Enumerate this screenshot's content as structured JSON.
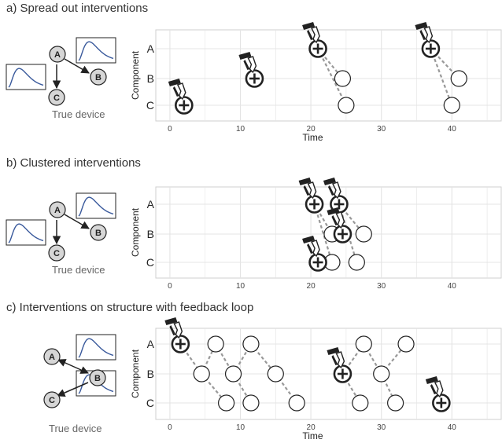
{
  "panels": [
    {
      "title": "a)  Spread out interventions",
      "device_label": "True device",
      "nodes": [
        "A",
        "B",
        "C"
      ],
      "yaxis_label": "Component",
      "xaxis_label": "Time",
      "rows": [
        "A",
        "B",
        "C"
      ],
      "xticks": [
        "0",
        "10",
        "20",
        "30",
        "40"
      ],
      "interventions": [
        {
          "t": 2,
          "row": "C"
        },
        {
          "t": 12,
          "row": "B"
        },
        {
          "t": 21,
          "row": "A"
        },
        {
          "t": 37,
          "row": "A"
        }
      ],
      "responses": [
        {
          "t": 24.5,
          "row": "B",
          "from": 2
        },
        {
          "t": 25,
          "row": "C",
          "from": 2
        },
        {
          "t": 41,
          "row": "B",
          "from": 3
        },
        {
          "t": 40,
          "row": "C",
          "from": 3
        }
      ]
    },
    {
      "title": "b) Clustered interventions",
      "device_label": "True device",
      "nodes": [
        "A",
        "B",
        "C"
      ],
      "yaxis_label": "Component",
      "xaxis_label": "",
      "rows": [
        "A",
        "B",
        "C"
      ],
      "xticks": [
        "0",
        "10",
        "20",
        "30",
        "40"
      ],
      "interventions": [
        {
          "t": 20.5,
          "row": "A"
        },
        {
          "t": 24,
          "row": "A"
        },
        {
          "t": 24.5,
          "row": "B"
        },
        {
          "t": 21,
          "row": "C"
        }
      ],
      "responses": [
        {
          "t": 23,
          "row": "B",
          "from": 0
        },
        {
          "t": 23,
          "row": "C",
          "from": 0
        },
        {
          "t": 27.5,
          "row": "B",
          "from": 1
        },
        {
          "t": 26.5,
          "row": "C",
          "from": 1
        }
      ]
    },
    {
      "title": "c) Interventions on structure with feedback loop",
      "device_label": "True device",
      "nodes": [
        "A",
        "B",
        "C"
      ],
      "yaxis_label": "Component",
      "xaxis_label": "Time",
      "rows": [
        "A",
        "B",
        "C"
      ],
      "xticks": [
        "0",
        "10",
        "20",
        "30",
        "40"
      ],
      "interventions": [
        {
          "t": 1.5,
          "row": "A"
        },
        {
          "t": 24.5,
          "row": "B"
        },
        {
          "t": 38.5,
          "row": "C"
        }
      ],
      "responses": [
        {
          "t": 4.5,
          "row": "B",
          "from": 0
        },
        {
          "t": 8,
          "row": "C",
          "from": "r0"
        },
        {
          "t": 6.5,
          "row": "A",
          "from": "r0"
        },
        {
          "t": 9,
          "row": "B",
          "from": "r2"
        },
        {
          "t": 11.5,
          "row": "C",
          "from": "r3"
        },
        {
          "t": 11.5,
          "row": "A",
          "from": "r3"
        },
        {
          "t": 15,
          "row": "B",
          "from": "r5"
        },
        {
          "t": 18,
          "row": "C",
          "from": "r6"
        },
        {
          "t": 27,
          "row": "C",
          "from": 1
        },
        {
          "t": 27.5,
          "row": "A",
          "from": 1
        },
        {
          "t": 30,
          "row": "B",
          "from": "r9"
        },
        {
          "t": 32,
          "row": "C",
          "from": "r10"
        },
        {
          "t": 33.5,
          "row": "A",
          "from": "r10"
        }
      ]
    }
  ],
  "colors": {
    "panel_bg": "#ffffff",
    "grid": "#e4e4e4",
    "node_fill": "#d6d6d6",
    "curve": "#3a5a9c",
    "dash": "#999999",
    "dark": "#222222"
  }
}
